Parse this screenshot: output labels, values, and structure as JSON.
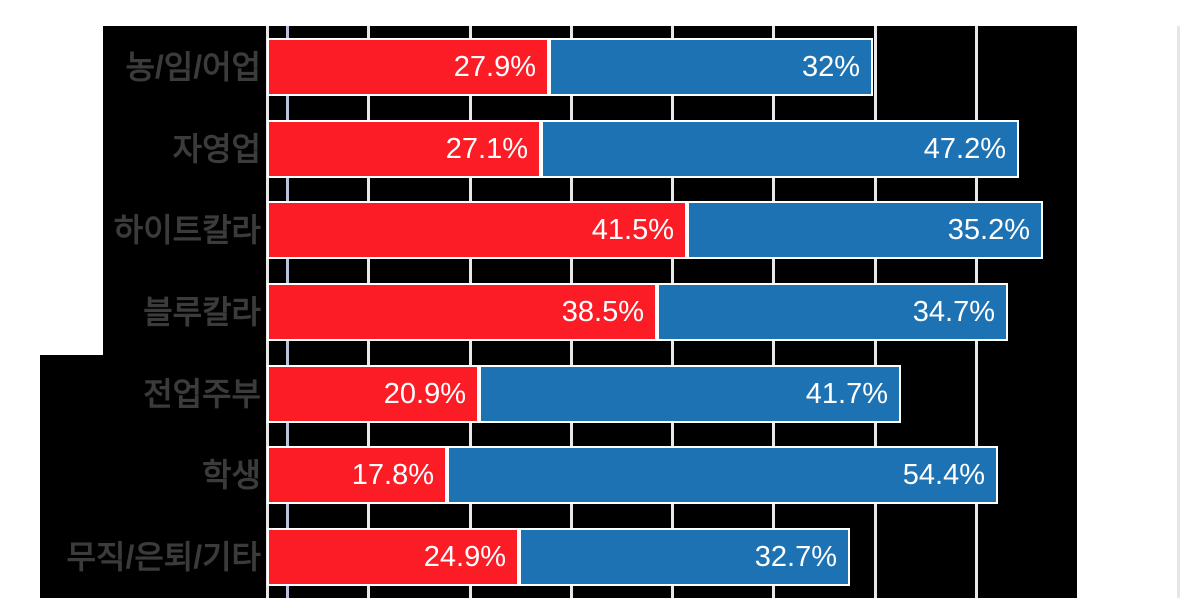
{
  "chart_data": {
    "type": "bar",
    "orientation": "horizontal-stacked",
    "title": "",
    "legend": "none",
    "categories": [
      "농/임/어업",
      "자영업",
      "하이트칼라",
      "블루칼라",
      "전업주부",
      "학생",
      "무직/은퇴/기타"
    ],
    "series": [
      {
        "name": "red-segment",
        "color": "#fb1c26",
        "values": [
          27.9,
          27.1,
          41.5,
          38.5,
          20.9,
          17.8,
          24.9
        ],
        "labels": [
          "27.9%",
          "27.1%",
          "41.5%",
          "38.5%",
          "20.9%",
          "17.8%",
          "24.9%"
        ]
      },
      {
        "name": "blue-segment",
        "color": "#1d72b3",
        "values": [
          32,
          47.2,
          35.2,
          34.7,
          41.7,
          54.4,
          32.7
        ],
        "labels": [
          "32%",
          "47.2%",
          "35.2%",
          "34.7%",
          "41.7%",
          "54.4%",
          "32.7%"
        ]
      }
    ],
    "xlim": [
      0,
      80
    ],
    "gridlines": [
      {
        "pct": 0,
        "color": "#e8e8e8"
      },
      {
        "pct": 2,
        "color": "#b9c3da"
      },
      {
        "pct": 10,
        "color": "#e8e8e8"
      },
      {
        "pct": 20,
        "color": "#e8e8e8"
      },
      {
        "pct": 30,
        "color": "#e8e8e8"
      },
      {
        "pct": 40,
        "color": "#e8e8e8"
      },
      {
        "pct": 50,
        "color": "#e8e8e8"
      },
      {
        "pct": 60,
        "color": "#e8e8e8"
      },
      {
        "pct": 70,
        "color": "#e8e8e8"
      },
      {
        "pct": 90,
        "color": "#e6e6e6"
      }
    ],
    "colors": {
      "plot_background": "#000000",
      "page_background": "#ffffff",
      "category_label": "#3b3b3b",
      "value_text": "#ffffff",
      "bar_border": "#ffffff"
    }
  }
}
